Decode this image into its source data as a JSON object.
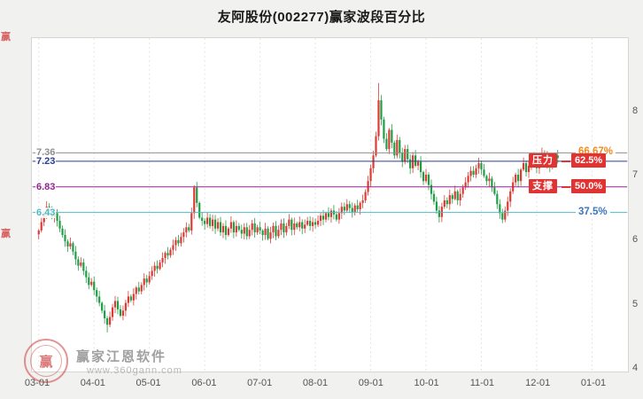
{
  "chart_data": {
    "type": "candlestick",
    "title": "友阿股份(002277)赢家波段百分比",
    "x_labels": [
      "03-01",
      "04-01",
      "05-01",
      "06-01",
      "07-01",
      "08-01",
      "09-01",
      "10-01",
      "11-01",
      "12-01",
      "01-01"
    ],
    "y_ticks": [
      8,
      7,
      6,
      5,
      4
    ],
    "ylim": [
      3.95,
      9.15
    ],
    "up_color": "#dd3a34",
    "down_color": "#1f9e45",
    "open_rule": "previous_close",
    "closes": [
      6.15,
      6.28,
      6.42,
      6.52,
      6.45,
      6.35,
      6.42,
      6.3,
      6.18,
      6.08,
      5.98,
      5.9,
      5.95,
      5.82,
      5.7,
      5.6,
      5.65,
      5.52,
      5.42,
      5.3,
      5.35,
      5.22,
      5.12,
      5.02,
      4.9,
      4.78,
      4.68,
      4.8,
      4.95,
      5.05,
      4.92,
      4.82,
      4.9,
      5.02,
      5.12,
      5.06,
      5.16,
      5.26,
      5.2,
      5.3,
      5.4,
      5.34,
      5.44,
      5.52,
      5.6,
      5.55,
      5.65,
      5.72,
      5.8,
      5.76,
      5.85,
      5.92,
      6.0,
      5.95,
      6.05,
      6.12,
      6.2,
      6.15,
      6.42,
      6.82,
      6.58,
      6.35,
      6.3,
      6.25,
      6.35,
      6.22,
      6.32,
      6.18,
      6.28,
      6.12,
      6.22,
      6.08,
      6.18,
      6.28,
      6.12,
      6.22,
      6.16,
      6.1,
      6.2,
      6.06,
      6.16,
      6.26,
      6.12,
      6.2,
      6.15,
      6.08,
      6.18,
      6.02,
      6.12,
      6.22,
      6.06,
      6.16,
      6.26,
      6.12,
      6.22,
      6.32,
      6.16,
      6.26,
      6.2,
      6.28,
      6.18,
      6.24,
      6.3,
      6.22,
      6.28,
      6.24,
      6.3,
      6.38,
      6.32,
      6.42,
      6.36,
      6.46,
      6.4,
      6.32,
      6.42,
      6.52,
      6.46,
      6.56,
      6.5,
      6.44,
      6.54,
      6.48,
      6.58,
      6.62,
      6.75,
      6.92,
      7.12,
      7.32,
      7.62,
      8.18,
      7.88,
      7.58,
      7.42,
      7.72,
      7.52,
      7.32,
      7.56,
      7.36,
      7.22,
      7.42,
      7.26,
      7.12,
      7.32,
      7.16,
      7.22,
      7.06,
      6.92,
      7.02,
      6.86,
      6.72,
      6.6,
      6.46,
      6.36,
      6.52,
      6.62,
      6.56,
      6.7,
      6.64,
      6.76,
      6.62,
      6.72,
      6.82,
      6.9,
      7.0,
      7.08,
      7.02,
      7.12,
      7.2,
      7.1,
      7.0,
      6.92,
      6.96,
      6.82,
      6.72,
      6.56,
      6.42,
      6.32,
      6.46,
      6.6,
      6.76,
      6.9,
      7.02,
      6.92,
      7.1,
      7.2,
      7.06,
      7.16,
      7.3,
      7.22,
      7.12,
      7.26,
      7.36,
      7.2,
      7.3,
      7.14,
      7.24,
      7.32,
      7.28
    ],
    "extremes": {
      "session_high": 8.45,
      "session_low": 4.56
    },
    "levels": [
      {
        "price": 7.36,
        "percent": "66.67%",
        "line_color": "#8f8f8f",
        "label_color": "#f08a1d",
        "boxed": false
      },
      {
        "price": 7.23,
        "percent": "62.5%",
        "line_color": "#2c3e8f",
        "label_color": "#ffffff",
        "boxed": true
      },
      {
        "price": 6.83,
        "percent": "50.0%",
        "line_color": "#93278f",
        "label_color": "#ffffff",
        "boxed": true
      },
      {
        "price": 6.43,
        "percent": "37.5%",
        "line_color": "#52b9c8",
        "label_color": "#3f74c0",
        "boxed": false
      }
    ],
    "annotations": [
      {
        "text": "压力",
        "attach_price": 7.23
      },
      {
        "text": "支撑",
        "attach_price": 6.83
      }
    ]
  },
  "watermark": {
    "brand": "赢家江恩软件",
    "url": "www.360gann.com",
    "seal_char": "赢"
  }
}
